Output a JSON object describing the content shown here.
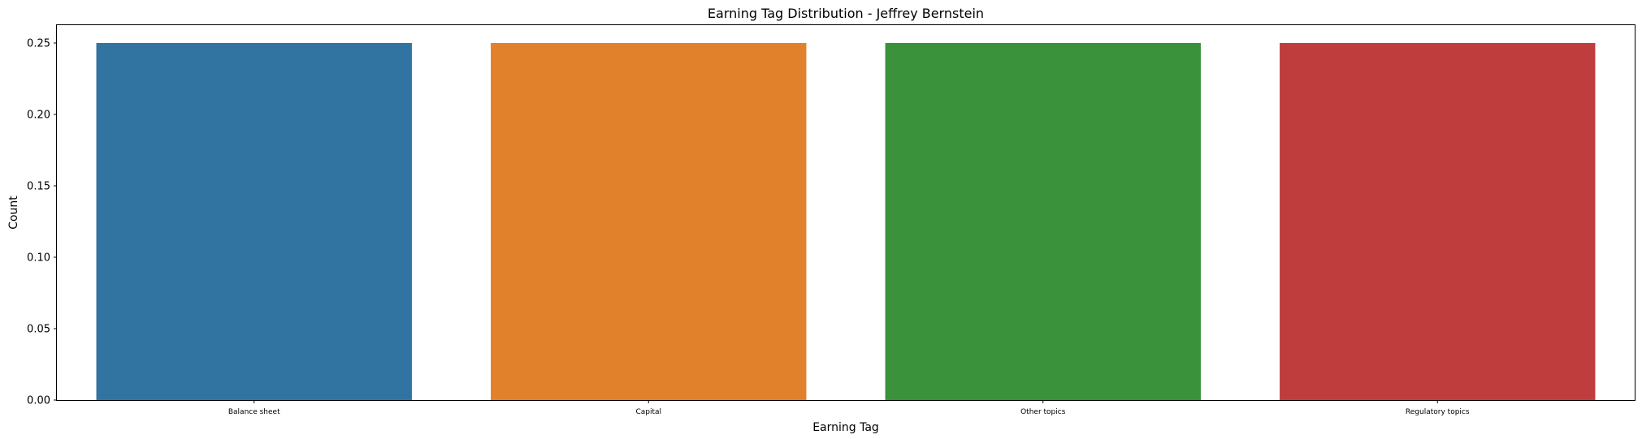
{
  "chart_data": {
    "type": "bar",
    "title": "Earning Tag Distribution - Jeffrey Bernstein",
    "xlabel": "Earning Tag",
    "ylabel": "Count",
    "categories": [
      "Balance sheet",
      "Capital",
      "Other topics",
      "Regulatory topics"
    ],
    "values": [
      0.25,
      0.25,
      0.25,
      0.25
    ],
    "colors": [
      "#3274a1",
      "#e1812c",
      "#3a923a",
      "#c03d3e"
    ],
    "ylim": [
      0,
      0.2625
    ],
    "yticks": [
      0.0,
      0.05,
      0.1,
      0.15,
      0.2,
      0.25
    ],
    "ytick_labels": [
      "0.00",
      "0.05",
      "0.10",
      "0.15",
      "0.20",
      "0.25"
    ],
    "grid": false,
    "legend": "none"
  }
}
